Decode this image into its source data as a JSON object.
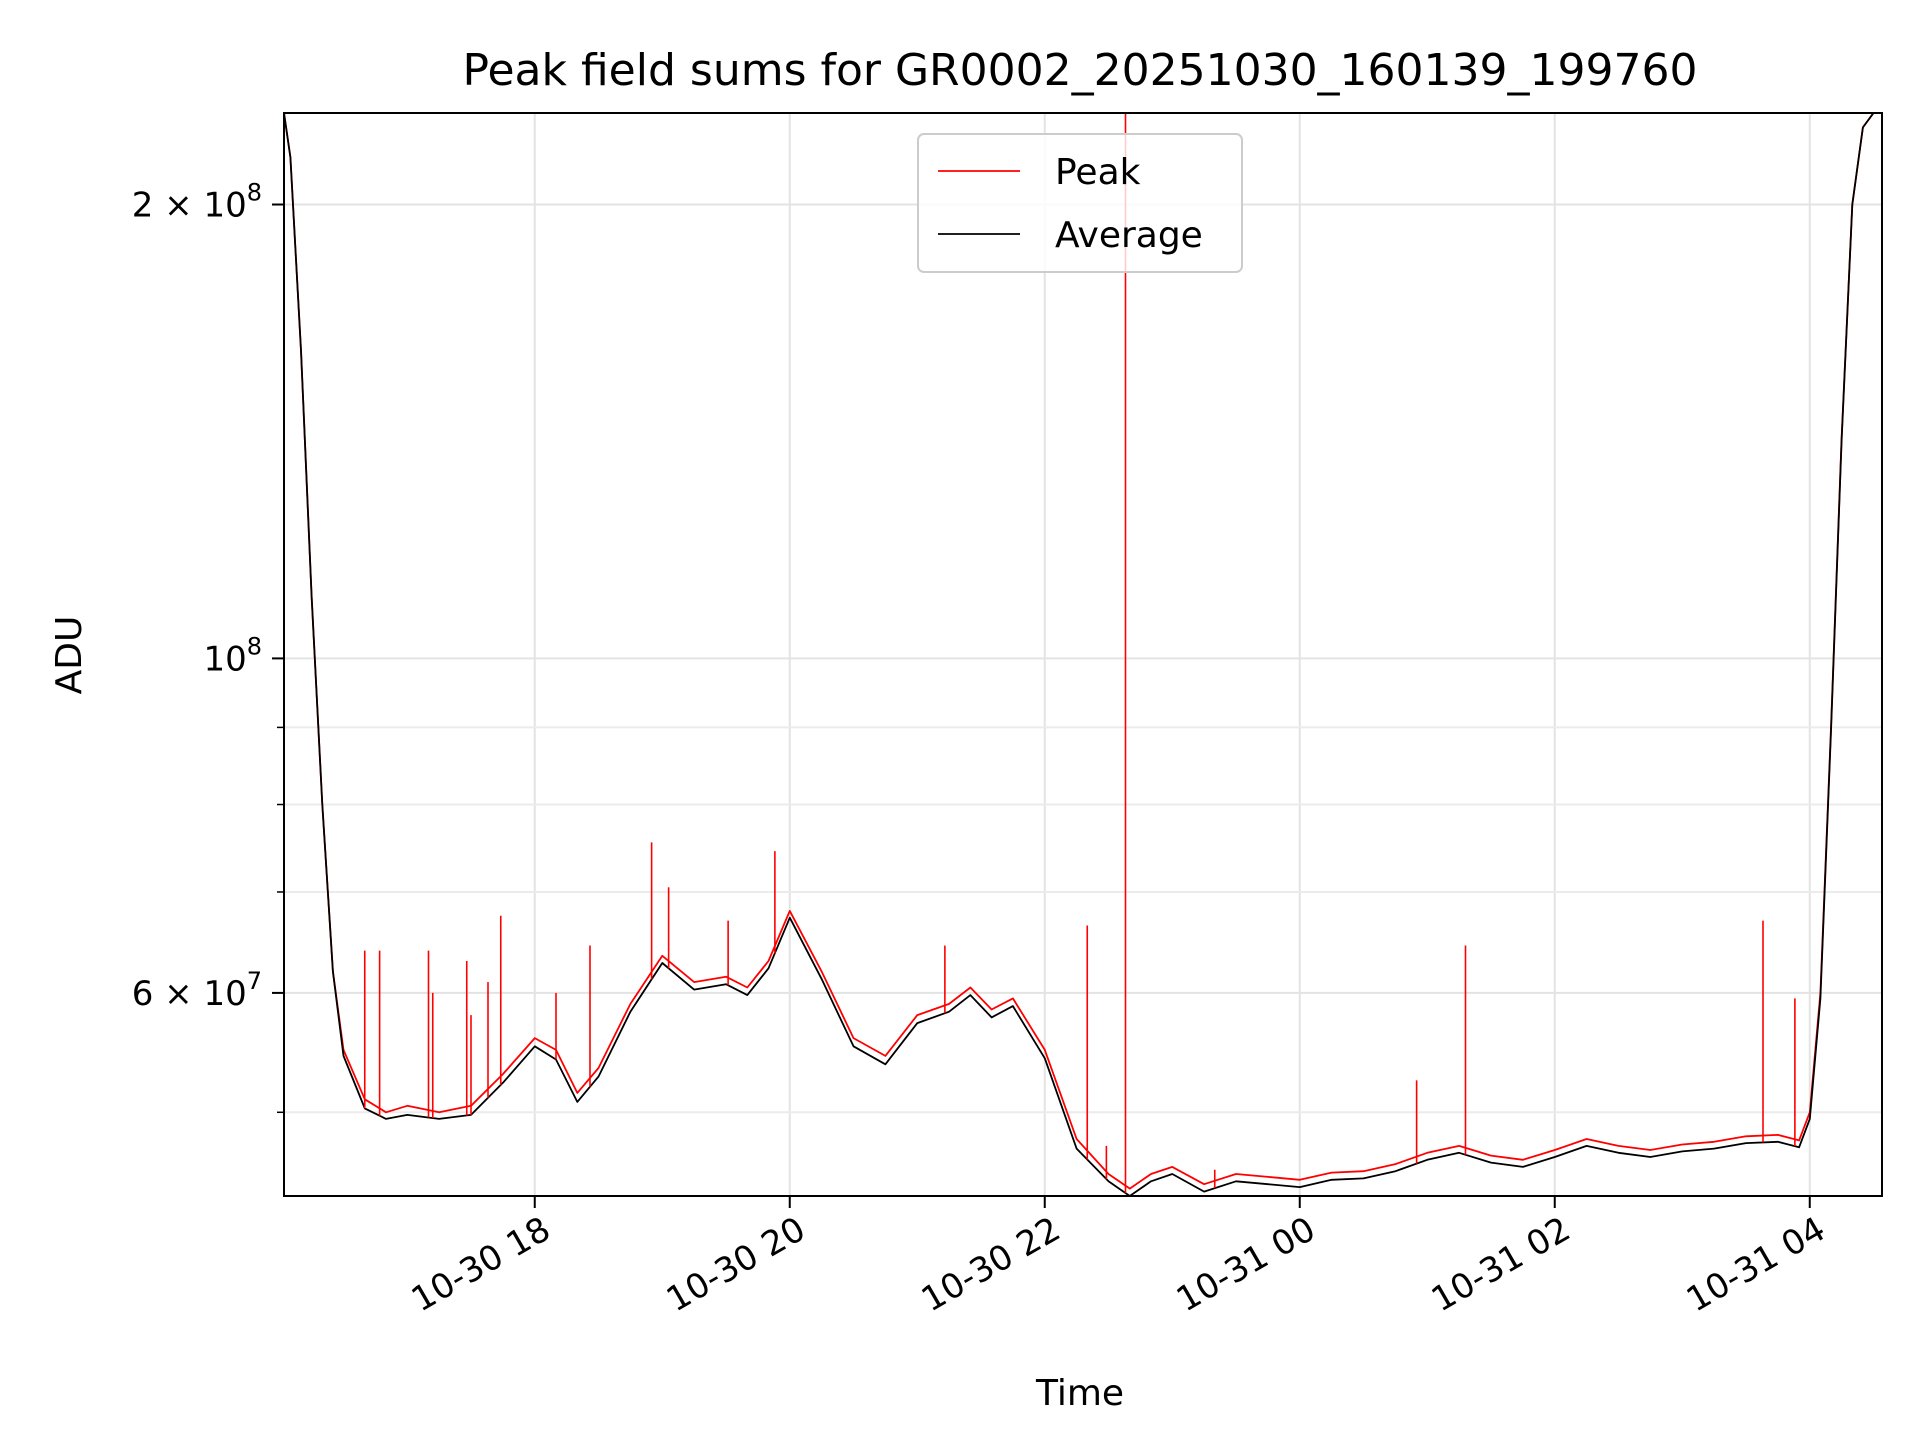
{
  "chart_data": {
    "type": "line",
    "title": "Peak field sums for GR0002_20251030_160139_199760",
    "xlabel": "Time",
    "ylabel": "ADU",
    "x_type": "datetime",
    "xlim": [
      "2025-10-30 16:02",
      "2025-10-31 04:34"
    ],
    "ylim": [
      44000000,
      230000000
    ],
    "y_scale": "log",
    "x_ticks": [
      {
        "value": "2025-10-30 18:00",
        "label": "10-30 18"
      },
      {
        "value": "2025-10-30 20:00",
        "label": "10-30 20"
      },
      {
        "value": "2025-10-30 22:00",
        "label": "10-30 22"
      },
      {
        "value": "2025-10-31 00:00",
        "label": "10-31 00"
      },
      {
        "value": "2025-10-31 02:00",
        "label": "10-31 02"
      },
      {
        "value": "2025-10-31 04:00",
        "label": "10-31 04"
      }
    ],
    "y_ticks_major": [
      {
        "value": 60000000,
        "label_base": "6 × 10",
        "label_exp": "7"
      },
      {
        "value": 100000000,
        "label_base": "10",
        "label_exp": "8"
      },
      {
        "value": 200000000,
        "label_base": "2 × 10",
        "label_exp": "8"
      }
    ],
    "y_ticks_minor": [
      50000000,
      70000000,
      80000000,
      90000000
    ],
    "grid": true,
    "legend_position": "upper center",
    "series": [
      {
        "name": "Peak",
        "color": "#ff0000",
        "x": [
          "2025-10-30 16:02",
          "2025-10-30 16:05",
          "2025-10-30 16:10",
          "2025-10-30 16:15",
          "2025-10-30 16:20",
          "2025-10-30 16:25",
          "2025-10-30 16:30",
          "2025-10-30 16:40",
          "2025-10-30 16:50",
          "2025-10-30 17:00",
          "2025-10-30 17:15",
          "2025-10-30 17:30",
          "2025-10-30 17:45",
          "2025-10-30 18:00",
          "2025-10-30 18:10",
          "2025-10-30 18:20",
          "2025-10-30 18:30",
          "2025-10-30 18:45",
          "2025-10-30 19:00",
          "2025-10-30 19:15",
          "2025-10-30 19:30",
          "2025-10-30 19:40",
          "2025-10-30 19:50",
          "2025-10-30 20:00",
          "2025-10-30 20:15",
          "2025-10-30 20:30",
          "2025-10-30 20:45",
          "2025-10-30 21:00",
          "2025-10-30 21:15",
          "2025-10-30 21:25",
          "2025-10-30 21:35",
          "2025-10-30 21:45",
          "2025-10-30 22:00",
          "2025-10-30 22:15",
          "2025-10-30 22:30",
          "2025-10-30 22:35",
          "2025-10-30 22:40",
          "2025-10-30 22:50",
          "2025-10-30 23:00",
          "2025-10-30 23:15",
          "2025-10-30 23:30",
          "2025-10-30 23:45",
          "2025-10-31 00:00",
          "2025-10-31 00:15",
          "2025-10-31 00:30",
          "2025-10-31 00:45",
          "2025-10-31 01:00",
          "2025-10-31 01:15",
          "2025-10-31 01:30",
          "2025-10-31 01:45",
          "2025-10-31 02:00",
          "2025-10-31 02:15",
          "2025-10-31 02:30",
          "2025-10-31 02:45",
          "2025-10-31 03:00",
          "2025-10-31 03:15",
          "2025-10-31 03:30",
          "2025-10-31 03:45",
          "2025-10-31 03:55",
          "2025-10-31 04:00",
          "2025-10-31 04:05",
          "2025-10-31 04:10",
          "2025-10-31 04:15",
          "2025-10-31 04:20",
          "2025-10-31 04:25",
          "2025-10-31 04:30"
        ],
        "y": [
          230000000,
          215000000,
          160000000,
          110000000,
          80000000,
          62000000,
          55000000,
          51000000,
          50000000,
          50500000,
          50000000,
          50500000,
          53000000,
          56000000,
          55000000,
          51500000,
          53500000,
          59000000,
          63500000,
          61000000,
          61500000,
          60500000,
          63000000,
          68000000,
          62000000,
          56000000,
          54500000,
          58000000,
          59000000,
          60500000,
          58500000,
          59500000,
          55000000,
          48000000,
          45500000,
          45000000,
          44500000,
          45500000,
          46000000,
          44800000,
          45500000,
          45300000,
          45100000,
          45600000,
          45700000,
          46200000,
          47000000,
          47500000,
          46800000,
          46500000,
          47200000,
          48000000,
          47500000,
          47200000,
          47600000,
          47800000,
          48200000,
          48300000,
          47900000,
          50000000,
          60000000,
          90000000,
          140000000,
          200000000,
          225000000,
          230000000
        ]
      },
      {
        "name": "Average",
        "color": "#000000",
        "x": [
          "2025-10-30 16:02",
          "2025-10-30 16:05",
          "2025-10-30 16:10",
          "2025-10-30 16:15",
          "2025-10-30 16:20",
          "2025-10-30 16:25",
          "2025-10-30 16:30",
          "2025-10-30 16:40",
          "2025-10-30 16:50",
          "2025-10-30 17:00",
          "2025-10-30 17:15",
          "2025-10-30 17:30",
          "2025-10-30 17:45",
          "2025-10-30 18:00",
          "2025-10-30 18:10",
          "2025-10-30 18:20",
          "2025-10-30 18:30",
          "2025-10-30 18:45",
          "2025-10-30 19:00",
          "2025-10-30 19:15",
          "2025-10-30 19:30",
          "2025-10-30 19:40",
          "2025-10-30 19:50",
          "2025-10-30 20:00",
          "2025-10-30 20:15",
          "2025-10-30 20:30",
          "2025-10-30 20:45",
          "2025-10-30 21:00",
          "2025-10-30 21:15",
          "2025-10-30 21:25",
          "2025-10-30 21:35",
          "2025-10-30 21:45",
          "2025-10-30 22:00",
          "2025-10-30 22:15",
          "2025-10-30 22:30",
          "2025-10-30 22:35",
          "2025-10-30 22:40",
          "2025-10-30 22:50",
          "2025-10-30 23:00",
          "2025-10-30 23:15",
          "2025-10-30 23:30",
          "2025-10-30 23:45",
          "2025-10-31 00:00",
          "2025-10-31 00:15",
          "2025-10-31 00:30",
          "2025-10-31 00:45",
          "2025-10-31 01:00",
          "2025-10-31 01:15",
          "2025-10-31 01:30",
          "2025-10-31 01:45",
          "2025-10-31 02:00",
          "2025-10-31 02:15",
          "2025-10-31 02:30",
          "2025-10-31 02:45",
          "2025-10-31 03:00",
          "2025-10-31 03:15",
          "2025-10-31 03:30",
          "2025-10-31 03:45",
          "2025-10-31 03:55",
          "2025-10-31 04:00",
          "2025-10-31 04:05",
          "2025-10-31 04:10",
          "2025-10-31 04:15",
          "2025-10-31 04:20",
          "2025-10-31 04:25",
          "2025-10-31 04:30"
        ],
        "y": [
          230000000,
          215000000,
          160000000,
          110000000,
          80000000,
          62000000,
          54500000,
          50300000,
          49500000,
          49800000,
          49500000,
          49800000,
          52300000,
          55300000,
          54200000,
          50800000,
          52800000,
          58300000,
          62800000,
          60300000,
          60800000,
          59800000,
          62300000,
          67300000,
          61300000,
          55300000,
          53800000,
          57300000,
          58300000,
          59800000,
          57800000,
          58800000,
          54300000,
          47300000,
          45000000,
          44500000,
          44000000,
          45000000,
          45500000,
          44300000,
          45000000,
          44800000,
          44600000,
          45100000,
          45200000,
          45700000,
          46500000,
          47000000,
          46300000,
          46000000,
          46700000,
          47500000,
          47000000,
          46700000,
          47100000,
          47300000,
          47700000,
          47800000,
          47400000,
          49500000,
          59500000,
          89500000,
          139500000,
          200000000,
          225000000,
          230000000
        ]
      }
    ],
    "peak_spikes": [
      {
        "x": "2025-10-30 16:40",
        "y": 64000000
      },
      {
        "x": "2025-10-30 16:47",
        "y": 64000000
      },
      {
        "x": "2025-10-30 17:10",
        "y": 64000000
      },
      {
        "x": "2025-10-30 17:12",
        "y": 60000000
      },
      {
        "x": "2025-10-30 17:28",
        "y": 63000000
      },
      {
        "x": "2025-10-30 17:30",
        "y": 58000000
      },
      {
        "x": "2025-10-30 17:38",
        "y": 61000000
      },
      {
        "x": "2025-10-30 17:44",
        "y": 67500000
      },
      {
        "x": "2025-10-30 18:10",
        "y": 60000000
      },
      {
        "x": "2025-10-30 18:26",
        "y": 64500000
      },
      {
        "x": "2025-10-30 18:55",
        "y": 75500000
      },
      {
        "x": "2025-10-30 19:03",
        "y": 70500000
      },
      {
        "x": "2025-10-30 19:31",
        "y": 67000000
      },
      {
        "x": "2025-10-30 19:53",
        "y": 74500000
      },
      {
        "x": "2025-10-30 21:13",
        "y": 64500000
      },
      {
        "x": "2025-10-30 22:20",
        "y": 66500000
      },
      {
        "x": "2025-10-30 22:29",
        "y": 47500000
      },
      {
        "x": "2025-10-30 22:38",
        "y": 230000000
      },
      {
        "x": "2025-10-30 23:20",
        "y": 45800000
      },
      {
        "x": "2025-10-31 00:55",
        "y": 52500000
      },
      {
        "x": "2025-10-31 01:18",
        "y": 64500000
      },
      {
        "x": "2025-10-31 03:38",
        "y": 67000000
      },
      {
        "x": "2025-10-31 03:53",
        "y": 59500000
      }
    ]
  }
}
